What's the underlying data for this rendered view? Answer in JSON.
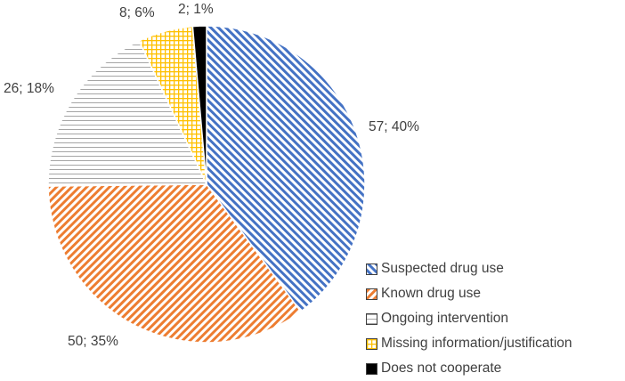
{
  "chart_data": {
    "type": "pie",
    "title": "",
    "start_angle_deg": 0,
    "direction": "clockwise",
    "legend_position": "bottom-right",
    "slices": [
      {
        "name": "Suspected drug use",
        "value": 57,
        "percent": 40,
        "label": "57; 40%",
        "color": "#4472C4",
        "pattern": "diagonal-stripes"
      },
      {
        "name": "Known drug use",
        "value": 50,
        "percent": 35,
        "label": "50; 35%",
        "color": "#ED7D31",
        "pattern": "diagonal-stripes-reverse"
      },
      {
        "name": "Ongoing intervention",
        "value": 26,
        "percent": 18,
        "label": "26; 18%",
        "color": "#A5A5A5",
        "pattern": "horizontal-lines"
      },
      {
        "name": "Missing information/justification",
        "value": 8,
        "percent": 6,
        "label": "8; 6%",
        "color": "#FFC000",
        "pattern": "grid"
      },
      {
        "name": "Does not cooperate",
        "value": 2,
        "percent": 1,
        "label": "2; 1%",
        "color": "#000000",
        "pattern": "solid"
      }
    ]
  }
}
